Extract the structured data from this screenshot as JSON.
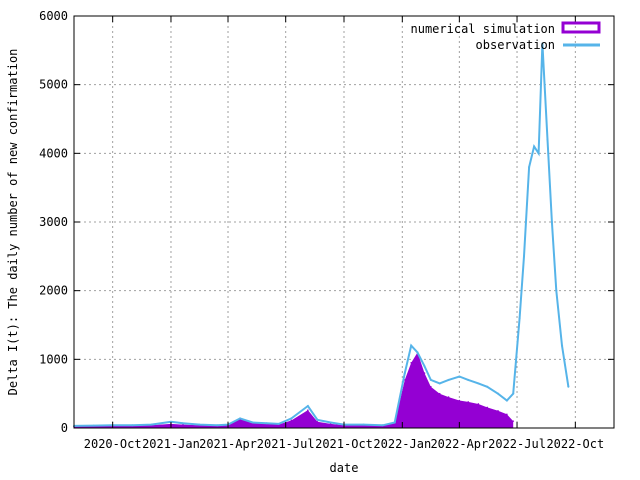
{
  "chart_data": {
    "type": "area",
    "title": "",
    "xlabel": "date",
    "ylabel": "Delta I(t): The daily number of new confirmation",
    "x_range": [
      "2020-08-01",
      "2022-12-01"
    ],
    "ylim": [
      0,
      6000
    ],
    "y_ticks": [
      0,
      1000,
      2000,
      3000,
      4000,
      5000,
      6000
    ],
    "x_ticks": [
      {
        "date": "2020-10-01",
        "label": "2020-Oct"
      },
      {
        "date": "2021-01-01",
        "label": "2021-Jan"
      },
      {
        "date": "2021-04-01",
        "label": "2021-Apr"
      },
      {
        "date": "2021-07-01",
        "label": "2021-Jul"
      },
      {
        "date": "2021-10-01",
        "label": "2021-Oct"
      },
      {
        "date": "2022-01-01",
        "label": "2022-Jan"
      },
      {
        "date": "2022-04-01",
        "label": "2022-Apr"
      },
      {
        "date": "2022-07-01",
        "label": "2022-Jul"
      },
      {
        "date": "2022-10-01",
        "label": "2022-Oct"
      }
    ],
    "grid": true,
    "legend_position": "top-right",
    "series": [
      {
        "name": "numerical simulation",
        "style": "filled-bars",
        "color": "#9400d3",
        "x": [
          "2020-08-01",
          "2020-09-01",
          "2020-10-01",
          "2020-11-01",
          "2020-12-01",
          "2021-01-01",
          "2021-01-20",
          "2021-02-15",
          "2021-03-15",
          "2021-04-01",
          "2021-04-20",
          "2021-05-10",
          "2021-06-01",
          "2021-06-20",
          "2021-07-10",
          "2021-08-05",
          "2021-08-20",
          "2021-09-10",
          "2021-10-01",
          "2021-11-01",
          "2021-12-01",
          "2021-12-20",
          "2022-01-05",
          "2022-01-15",
          "2022-01-25",
          "2022-02-05",
          "2022-02-15",
          "2022-03-01",
          "2022-03-15",
          "2022-04-01",
          "2022-04-15",
          "2022-05-01",
          "2022-05-15",
          "2022-06-01",
          "2022-06-15",
          "2022-06-25"
        ],
        "values": [
          20,
          25,
          30,
          30,
          40,
          60,
          50,
          40,
          30,
          40,
          130,
          70,
          60,
          50,
          110,
          260,
          90,
          60,
          40,
          40,
          40,
          70,
          700,
          950,
          1100,
          800,
          600,
          500,
          450,
          400,
          380,
          350,
          300,
          250,
          200,
          100
        ]
      },
      {
        "name": "observation",
        "style": "line",
        "color": "#56b4e9",
        "x": [
          "2020-08-01",
          "2020-09-01",
          "2020-10-01",
          "2020-11-01",
          "2020-12-01",
          "2021-01-01",
          "2021-01-20",
          "2021-02-15",
          "2021-03-15",
          "2021-04-01",
          "2021-04-20",
          "2021-05-10",
          "2021-06-01",
          "2021-06-20",
          "2021-07-10",
          "2021-08-05",
          "2021-08-20",
          "2021-09-10",
          "2021-10-01",
          "2021-11-01",
          "2021-12-01",
          "2021-12-20",
          "2022-01-05",
          "2022-01-15",
          "2022-01-25",
          "2022-02-05",
          "2022-02-15",
          "2022-03-01",
          "2022-03-15",
          "2022-04-01",
          "2022-04-15",
          "2022-05-01",
          "2022-05-15",
          "2022-06-01",
          "2022-06-15",
          "2022-06-25",
          "2022-07-05",
          "2022-07-12",
          "2022-07-20",
          "2022-07-28",
          "2022-08-04",
          "2022-08-10",
          "2022-08-18",
          "2022-08-25",
          "2022-09-01",
          "2022-09-10",
          "2022-09-20"
        ],
        "values": [
          30,
          35,
          40,
          40,
          50,
          90,
          70,
          50,
          40,
          50,
          140,
          80,
          70,
          60,
          140,
          320,
          120,
          80,
          50,
          50,
          40,
          80,
          800,
          1200,
          1100,
          900,
          700,
          650,
          700,
          750,
          700,
          650,
          600,
          500,
          400,
          500,
          1600,
          2500,
          3800,
          4100,
          4000,
          5600,
          4200,
          3000,
          2000,
          1200,
          600
        ]
      }
    ]
  }
}
